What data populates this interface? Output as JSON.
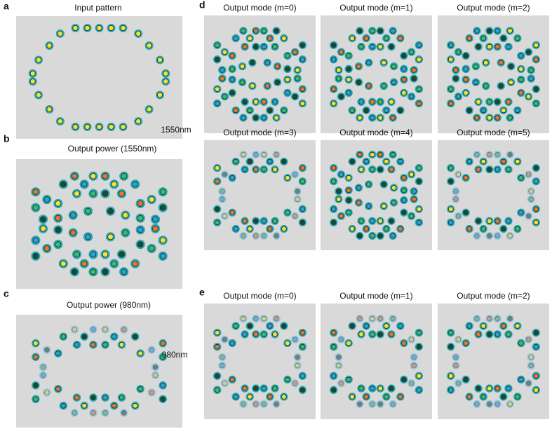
{
  "panel_a": {
    "letter": "a",
    "title": "Input pattern"
  },
  "panel_b": {
    "letter": "b",
    "title": "Output power (1550nm)"
  },
  "panel_c": {
    "letter": "c",
    "title": "Output power (980nm)"
  },
  "panel_d": {
    "letter": "d",
    "row_label": "1550nm",
    "titles": [
      "Output mode (m=0)",
      "Output mode (m=1)",
      "Output mode (m=2)",
      "Output mode (m=3)",
      "Output mode (m=4)",
      "Output mode (m=5)"
    ]
  },
  "panel_e": {
    "letter": "e",
    "row_label": "980nm",
    "titles": [
      "Output mode (m=0)",
      "Output mode (m=1)",
      "Output mode (m=2)"
    ]
  }
}
